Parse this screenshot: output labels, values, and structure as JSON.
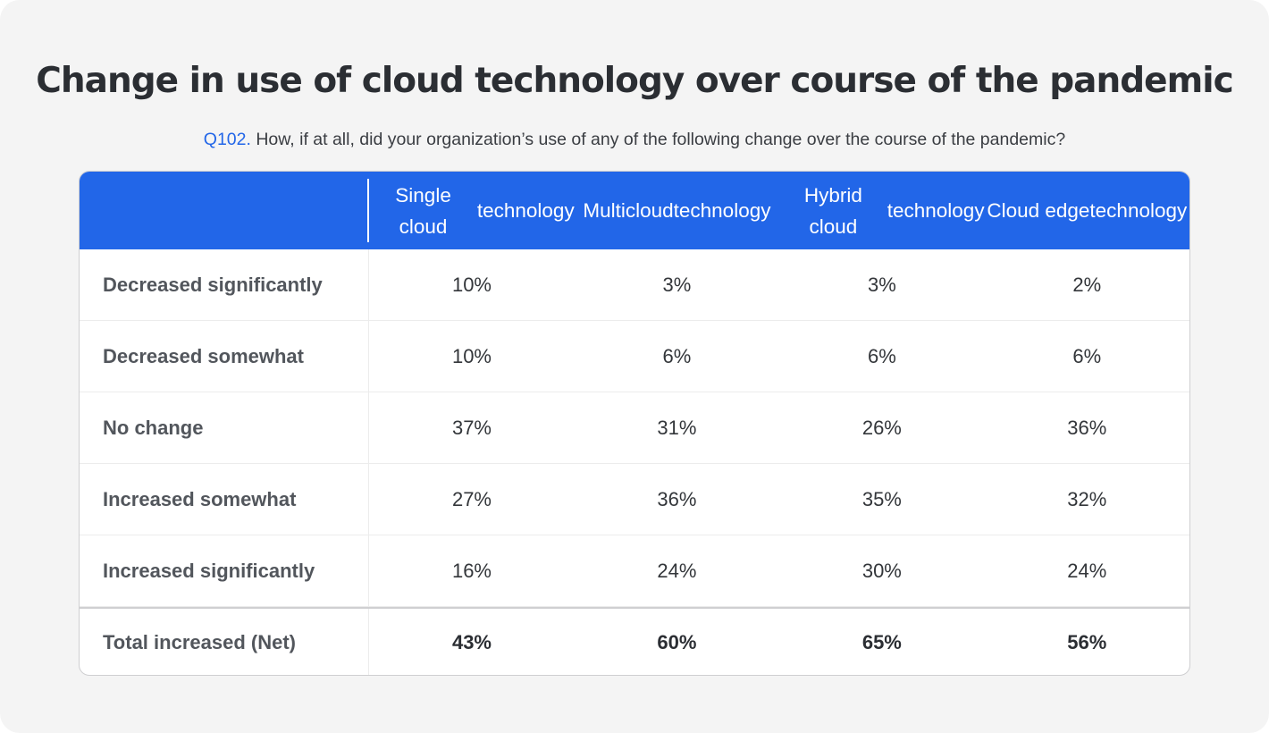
{
  "title": "Change in use of cloud technology over course of the pandemic",
  "subtitle": {
    "question_id": "Q102.",
    "text": "How, if at all, did your organization’s use of any of the following change over the course of the pandemic?"
  },
  "colors": {
    "header": "#2266e8",
    "question_id": "#2266e8",
    "background": "#f4f4f4"
  },
  "chart_data": {
    "type": "table",
    "title": "Change in use of cloud technology over course of the pandemic",
    "columns": [
      "Single cloud technology",
      "Multicloud technology",
      "Hybrid cloud technology",
      "Cloud edge technology"
    ],
    "rows": [
      {
        "label": "Decreased significantly",
        "values": [
          "10%",
          "3%",
          "3%",
          "2%"
        ]
      },
      {
        "label": "Decreased somewhat",
        "values": [
          "10%",
          "6%",
          "6%",
          "6%"
        ]
      },
      {
        "label": "No change",
        "values": [
          "37%",
          "31%",
          "26%",
          "36%"
        ]
      },
      {
        "label": "Increased somewhat",
        "values": [
          "27%",
          "36%",
          "35%",
          "32%"
        ]
      },
      {
        "label": "Increased significantly",
        "values": [
          "16%",
          "24%",
          "30%",
          "24%"
        ]
      },
      {
        "label": "Total increased (Net)",
        "values": [
          "43%",
          "60%",
          "65%",
          "56%"
        ]
      }
    ]
  }
}
